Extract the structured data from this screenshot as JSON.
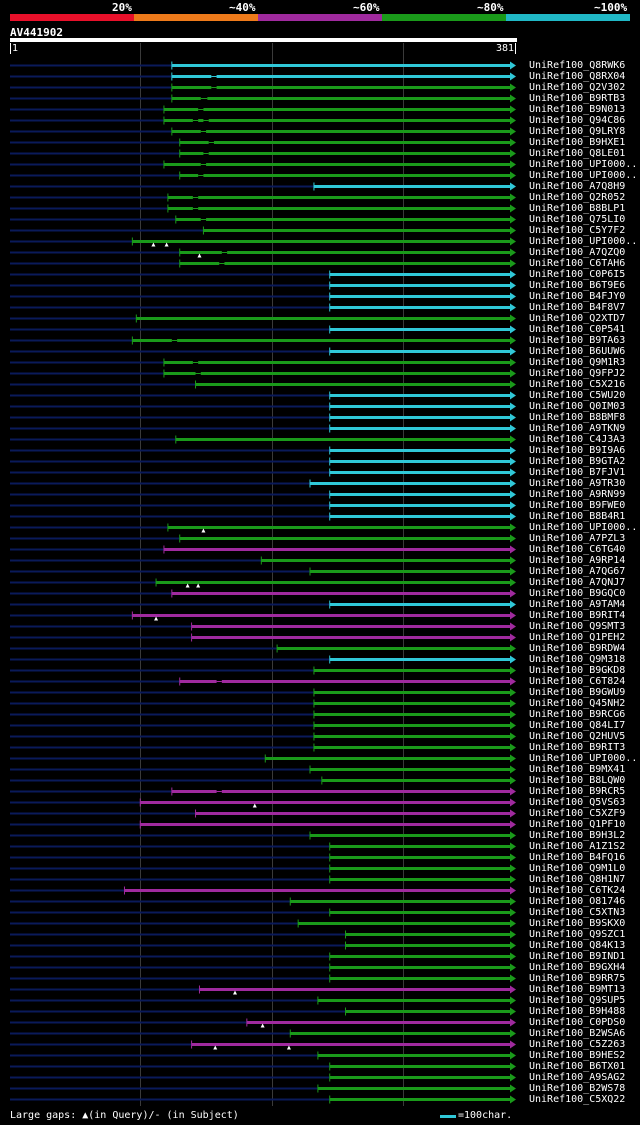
{
  "scale": {
    "labels": [
      "20%",
      "~40%",
      "~60%",
      "~80%",
      "~100%"
    ],
    "colors": [
      "#e8102a",
      "#ee7a1a",
      "#a02a9e",
      "#1a9a1a",
      "#20b8c6"
    ]
  },
  "query": {
    "id": "AV441902",
    "start": "1",
    "end": "381",
    "length": 381
  },
  "colors": {
    "cyan": "#30c8d8",
    "green": "#1a9a1a",
    "magenta": "#a02a9e",
    "background_line": "#0a1a5a"
  },
  "hits": [
    {
      "name": "UniRef100_Q8RWK6",
      "start": 124,
      "color": "cyan",
      "g": [],
      "t": []
    },
    {
      "name": "UniRef100_Q8RX04",
      "start": 124,
      "color": "cyan",
      "g": [
        154,
        158
      ],
      "t": []
    },
    {
      "name": "UniRef100_Q2V302",
      "start": 124,
      "color": "green",
      "g": [
        154,
        158
      ],
      "t": []
    },
    {
      "name": "UniRef100_B9RTB3",
      "start": 124,
      "color": "green",
      "g": [
        146,
        151
      ],
      "t": []
    },
    {
      "name": "UniRef100_B9N013",
      "start": 118,
      "color": "green",
      "g": [
        144,
        148
      ],
      "t": []
    },
    {
      "name": "UniRef100_Q94C86",
      "start": 118,
      "color": "green",
      "g": [
        140,
        144,
        148,
        152
      ],
      "t": []
    },
    {
      "name": "UniRef100_Q9LRY8",
      "start": 124,
      "color": "green",
      "g": [
        146,
        150
      ],
      "t": []
    },
    {
      "name": "UniRef100_B9HXE1",
      "start": 130,
      "color": "green",
      "g": [
        152,
        156
      ],
      "t": []
    },
    {
      "name": "UniRef100_Q8LE01",
      "start": 130,
      "color": "green",
      "g": [
        148,
        152
      ],
      "t": []
    },
    {
      "name": "UniRef100_UPI000..",
      "start": 118,
      "color": "green",
      "g": [
        146,
        150
      ],
      "t": []
    },
    {
      "name": "UniRef100_UPI000..",
      "start": 130,
      "color": "green",
      "g": [
        144,
        148
      ],
      "t": []
    },
    {
      "name": "UniRef100_A7Q8H9",
      "start": 232,
      "color": "cyan",
      "g": [],
      "t": []
    },
    {
      "name": "UniRef100_Q2R052",
      "start": 121,
      "color": "green",
      "g": [
        140,
        144
      ],
      "t": []
    },
    {
      "name": "UniRef100_B8BLP1",
      "start": 121,
      "color": "green",
      "g": [
        140,
        144
      ],
      "t": []
    },
    {
      "name": "UniRef100_Q75LI0",
      "start": 127,
      "color": "green",
      "g": [
        146,
        150
      ],
      "t": []
    },
    {
      "name": "UniRef100_C5Y7F2",
      "start": 148,
      "color": "green",
      "g": [],
      "t": []
    },
    {
      "name": "UniRef100_UPI000..",
      "start": 94,
      "color": "green",
      "g": [],
      "t": [
        110,
        120
      ]
    },
    {
      "name": "UniRef100_A7QZQ0",
      "start": 130,
      "color": "green",
      "g": [
        162,
        166
      ],
      "t": [
        145
      ]
    },
    {
      "name": "UniRef100_C6TAH6",
      "start": 130,
      "color": "green",
      "g": [
        160,
        164
      ],
      "t": []
    },
    {
      "name": "UniRef100_C0P6I5",
      "start": 244,
      "color": "cyan",
      "g": [],
      "t": []
    },
    {
      "name": "UniRef100_B6T9E6",
      "start": 244,
      "color": "cyan",
      "g": [],
      "t": []
    },
    {
      "name": "UniRef100_B4FJY0",
      "start": 244,
      "color": "cyan",
      "g": [],
      "t": []
    },
    {
      "name": "UniRef100_B4F8V7",
      "start": 244,
      "color": "cyan",
      "g": [],
      "t": []
    },
    {
      "name": "UniRef100_Q2XTD7",
      "start": 97,
      "color": "green",
      "g": [],
      "t": []
    },
    {
      "name": "UniRef100_C0P541",
      "start": 244,
      "color": "cyan",
      "g": [],
      "t": []
    },
    {
      "name": "UniRef100_B9TA63",
      "start": 94,
      "color": "green",
      "g": [
        124,
        128
      ],
      "t": []
    },
    {
      "name": "UniRef100_B6UUW6",
      "start": 244,
      "color": "cyan",
      "g": [],
      "t": []
    },
    {
      "name": "UniRef100_Q9M1R3",
      "start": 118,
      "color": "green",
      "g": [
        140,
        144
      ],
      "t": []
    },
    {
      "name": "UniRef100_Q9FPJ2",
      "start": 118,
      "color": "green",
      "g": [
        142,
        146
      ],
      "t": []
    },
    {
      "name": "UniRef100_C5X216",
      "start": 142,
      "color": "green",
      "g": [],
      "t": []
    },
    {
      "name": "UniRef100_C5WU20",
      "start": 244,
      "color": "cyan",
      "g": [],
      "t": []
    },
    {
      "name": "UniRef100_Q0IM03",
      "start": 244,
      "color": "cyan",
      "g": [],
      "t": []
    },
    {
      "name": "UniRef100_B8BMF8",
      "start": 244,
      "color": "cyan",
      "g": [],
      "t": []
    },
    {
      "name": "UniRef100_A9TKN9",
      "start": 244,
      "color": "cyan",
      "g": [],
      "t": []
    },
    {
      "name": "UniRef100_C4J3A3",
      "start": 127,
      "color": "green",
      "g": [],
      "t": []
    },
    {
      "name": "UniRef100_B9I9A6",
      "start": 244,
      "color": "cyan",
      "g": [],
      "t": []
    },
    {
      "name": "UniRef100_B9GTA2",
      "start": 244,
      "color": "cyan",
      "g": [],
      "t": []
    },
    {
      "name": "UniRef100_B7FJV1",
      "start": 244,
      "color": "cyan",
      "g": [],
      "t": []
    },
    {
      "name": "UniRef100_A9TR30",
      "start": 229,
      "color": "cyan",
      "g": [],
      "t": []
    },
    {
      "name": "UniRef100_A9RN99",
      "start": 244,
      "color": "cyan",
      "g": [],
      "t": []
    },
    {
      "name": "UniRef100_B9FWE0",
      "start": 244,
      "color": "cyan",
      "g": [],
      "t": []
    },
    {
      "name": "UniRef100_B8B4R1",
      "start": 244,
      "color": "cyan",
      "g": [],
      "t": []
    },
    {
      "name": "UniRef100_UPI000..",
      "start": 121,
      "color": "green",
      "g": [],
      "t": [
        148
      ]
    },
    {
      "name": "UniRef100_A7PZL3",
      "start": 130,
      "color": "green",
      "g": [],
      "t": []
    },
    {
      "name": "UniRef100_C6TG40",
      "start": 118,
      "color": "magenta",
      "g": [],
      "t": []
    },
    {
      "name": "UniRef100_A9RP14",
      "start": 192,
      "color": "green",
      "g": [],
      "t": []
    },
    {
      "name": "UniRef100_A7QG67",
      "start": 229,
      "color": "green",
      "g": [],
      "t": []
    },
    {
      "name": "UniRef100_A7QNJ7",
      "start": 112,
      "color": "green",
      "g": [],
      "t": [
        136,
        144
      ]
    },
    {
      "name": "UniRef100_B9GQC0",
      "start": 124,
      "color": "magenta",
      "g": [],
      "t": []
    },
    {
      "name": "UniRef100_A9TAM4",
      "start": 244,
      "color": "cyan",
      "g": [],
      "t": []
    },
    {
      "name": "UniRef100_B9RIT4",
      "start": 94,
      "color": "magenta",
      "g": [],
      "t": [
        112
      ]
    },
    {
      "name": "UniRef100_Q9SMT3",
      "start": 139,
      "color": "magenta",
      "g": [],
      "t": []
    },
    {
      "name": "UniRef100_Q1PEH2",
      "start": 139,
      "color": "magenta",
      "g": [],
      "t": []
    },
    {
      "name": "UniRef100_B9RDW4",
      "start": 204,
      "color": "green",
      "g": [],
      "t": []
    },
    {
      "name": "UniRef100_Q9M318",
      "start": 244,
      "color": "cyan",
      "g": [],
      "t": []
    },
    {
      "name": "UniRef100_B9GKD8",
      "start": 232,
      "color": "green",
      "g": [],
      "t": []
    },
    {
      "name": "UniRef100_C6T824",
      "start": 130,
      "color": "magenta",
      "g": [
        158,
        162
      ],
      "t": []
    },
    {
      "name": "UniRef100_B9GWU9",
      "start": 232,
      "color": "green",
      "g": [],
      "t": []
    },
    {
      "name": "UniRef100_Q45NH2",
      "start": 232,
      "color": "green",
      "g": [],
      "t": []
    },
    {
      "name": "UniRef100_B9RCG6",
      "start": 232,
      "color": "green",
      "g": [],
      "t": []
    },
    {
      "name": "UniRef100_Q84LI7",
      "start": 232,
      "color": "green",
      "g": [],
      "t": []
    },
    {
      "name": "UniRef100_Q2HUV5",
      "start": 232,
      "color": "green",
      "g": [],
      "t": []
    },
    {
      "name": "UniRef100_B9RIT3",
      "start": 232,
      "color": "green",
      "g": [],
      "t": []
    },
    {
      "name": "UniRef100_UPI000..",
      "start": 195,
      "color": "green",
      "g": [],
      "t": []
    },
    {
      "name": "UniRef100_B9MX41",
      "start": 229,
      "color": "green",
      "g": [],
      "t": []
    },
    {
      "name": "UniRef100_B8LQW0",
      "start": 238,
      "color": "green",
      "g": [],
      "t": []
    },
    {
      "name": "UniRef100_B9RCR5",
      "start": 124,
      "color": "magenta",
      "g": [
        158,
        162
      ],
      "t": []
    },
    {
      "name": "UniRef100_Q5VS63",
      "start": 100,
      "color": "magenta",
      "g": [],
      "t": [
        187
      ]
    },
    {
      "name": "UniRef100_C5XZF9",
      "start": 142,
      "color": "magenta",
      "g": [],
      "t": []
    },
    {
      "name": "UniRef100_Q1PF10",
      "start": 100,
      "color": "magenta",
      "g": [],
      "t": []
    },
    {
      "name": "UniRef100_B9H3L2",
      "start": 229,
      "color": "green",
      "g": [],
      "t": []
    },
    {
      "name": "UniRef100_A1Z1S2",
      "start": 244,
      "color": "green",
      "g": [],
      "t": []
    },
    {
      "name": "UniRef100_B4FQ16",
      "start": 244,
      "color": "green",
      "g": [],
      "t": []
    },
    {
      "name": "UniRef100_Q9M1L0",
      "start": 244,
      "color": "green",
      "g": [],
      "t": []
    },
    {
      "name": "UniRef100_Q8H1N7",
      "start": 244,
      "color": "green",
      "g": [],
      "t": []
    },
    {
      "name": "UniRef100_C6TK24",
      "start": 88,
      "color": "magenta",
      "g": [],
      "t": []
    },
    {
      "name": "UniRef100_O81746",
      "start": 214,
      "color": "green",
      "g": [],
      "t": []
    },
    {
      "name": "UniRef100_C5XTN3",
      "start": 244,
      "color": "green",
      "g": [],
      "t": []
    },
    {
      "name": "UniRef100_B9SKX0",
      "start": 220,
      "color": "green",
      "g": [],
      "t": []
    },
    {
      "name": "UniRef100_Q9SZC1",
      "start": 256,
      "color": "green",
      "g": [],
      "t": []
    },
    {
      "name": "UniRef100_Q84K13",
      "start": 256,
      "color": "green",
      "g": [],
      "t": []
    },
    {
      "name": "UniRef100_B9IND1",
      "start": 244,
      "color": "green",
      "g": [],
      "t": []
    },
    {
      "name": "UniRef100_B9GXH4",
      "start": 244,
      "color": "green",
      "g": [],
      "t": []
    },
    {
      "name": "UniRef100_B9RR75",
      "start": 244,
      "color": "green",
      "g": [],
      "t": []
    },
    {
      "name": "UniRef100_B9MT13",
      "start": 145,
      "color": "magenta",
      "g": [],
      "t": [
        172
      ]
    },
    {
      "name": "UniRef100_Q9SUP5",
      "start": 235,
      "color": "green",
      "g": [],
      "t": []
    },
    {
      "name": "UniRef100_B9H488",
      "start": 256,
      "color": "green",
      "g": [],
      "t": []
    },
    {
      "name": "UniRef100_C0PDS0",
      "start": 181,
      "color": "magenta",
      "g": [],
      "t": [
        193
      ]
    },
    {
      "name": "UniRef100_B2WSA6",
      "start": 214,
      "color": "green",
      "g": [],
      "t": []
    },
    {
      "name": "UniRef100_C5Z263",
      "start": 139,
      "color": "magenta",
      "g": [],
      "t": [
        157,
        213
      ]
    },
    {
      "name": "UniRef100_B9HES2",
      "start": 235,
      "color": "green",
      "g": [],
      "t": []
    },
    {
      "name": "UniRef100_B6TX01",
      "start": 244,
      "color": "green",
      "g": [],
      "t": []
    },
    {
      "name": "UniRef100_A9SAG2",
      "start": 244,
      "color": "green",
      "g": [],
      "t": []
    },
    {
      "name": "UniRef100_B2WS78",
      "start": 235,
      "color": "green",
      "g": [],
      "t": []
    },
    {
      "name": "UniRef100_C5XQ22",
      "start": 244,
      "color": "green",
      "g": [],
      "t": []
    }
  ],
  "footer": {
    "large_gaps": "Large gaps: ▲(in Query)/- (in Subject)",
    "legend": "=100char."
  }
}
